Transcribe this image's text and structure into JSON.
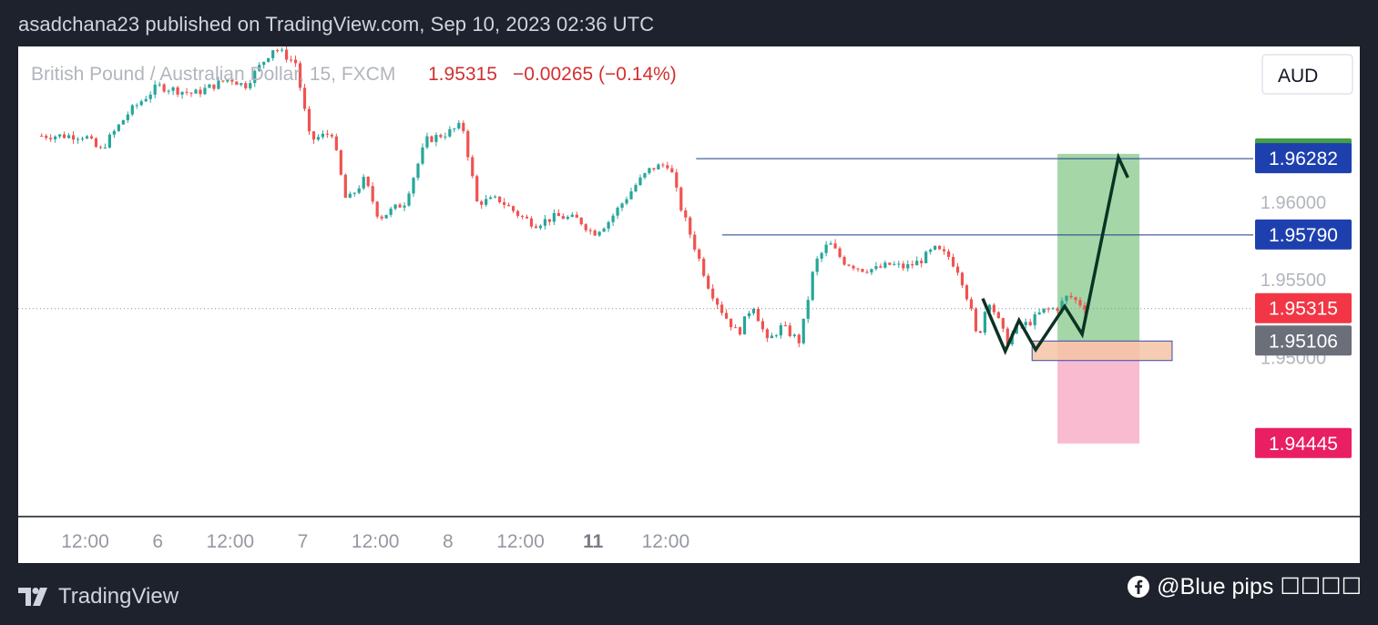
{
  "header": {
    "published_text": "asadchana23 published on TradingView.com, Sep 10, 2023 02:36 UTC"
  },
  "legend": {
    "symbol": "British Pound / Australian Dollar, 15, FXCM",
    "price": "1.95315",
    "change": "−0.00265 (−0.14%)"
  },
  "currency_button": "AUD",
  "footer": {
    "brand": "TradingView",
    "credit": "@Blue pips ☐☐☐☐"
  },
  "colors": {
    "background": "#1e222d",
    "up_candle": "#26a69a",
    "down_candle": "#ef5350",
    "target_zone": "#a5d6a7",
    "stop_zone": "#f8bbd0",
    "entry_zone": "#f5c4a4",
    "drawing": "#0b3323",
    "level_line": "#1e3a8a"
  },
  "chart_data": {
    "type": "candlestick",
    "x_ticks": [
      "12:00",
      "6",
      "12:00",
      "7",
      "12:00",
      "8",
      "12:00",
      "11",
      "12:00"
    ],
    "y_ticks": [
      "1.96000",
      "1.95500",
      "1.95000"
    ],
    "ylim": [
      1.9405,
      1.969
    ],
    "price_labels": [
      {
        "value": 1.96313,
        "label": "1.96313",
        "color": "#43a047"
      },
      {
        "value": 1.96282,
        "label": "1.96282",
        "color": "#1e40af"
      },
      {
        "value": 1.9579,
        "label": "1.95790",
        "color": "#1e40af"
      },
      {
        "value": 1.95315,
        "label": "1.95315",
        "color": "#f23645"
      },
      {
        "value": 1.95106,
        "label": "1.95106",
        "color": "#6b6f7a"
      },
      {
        "value": 1.94445,
        "label": "1.94445",
        "color": "#e91e63"
      }
    ],
    "horizontal_levels": [
      {
        "value": 1.96282,
        "from": 8.42
      },
      {
        "value": 1.9579,
        "from": 8.78
      }
    ],
    "last_price": 1.95315,
    "entry_zone": {
      "from": 13.05,
      "to": 14.98,
      "low": 1.9498,
      "high": 1.95106
    },
    "position": {
      "from": 13.4,
      "to": 14.53,
      "target": 1.96313,
      "entry": 1.95106,
      "stop": 1.94445
    },
    "projection_path": [
      {
        "t": 12.37,
        "p": 1.9538
      },
      {
        "t": 12.68,
        "p": 1.9504
      },
      {
        "t": 12.87,
        "p": 1.9524
      },
      {
        "t": 13.1,
        "p": 1.9505
      },
      {
        "t": 13.5,
        "p": 1.9533
      },
      {
        "t": 13.74,
        "p": 1.9515
      },
      {
        "t": 14.24,
        "p": 1.9629
      },
      {
        "t": 14.37,
        "p": 1.9616
      }
    ],
    "close_path": [
      {
        "t": 0.0,
        "p": 1.9643
      },
      {
        "t": 0.2,
        "p": 1.9633
      },
      {
        "t": 0.6,
        "p": 1.9658
      },
      {
        "t": 1.0,
        "p": 1.9675
      },
      {
        "t": 1.5,
        "p": 1.967
      },
      {
        "t": 2.0,
        "p": 1.968
      },
      {
        "t": 2.2,
        "p": 1.9675
      },
      {
        "t": 2.6,
        "p": 1.97
      },
      {
        "t": 2.9,
        "p": 1.969
      },
      {
        "t": 3.1,
        "p": 1.964
      },
      {
        "t": 3.4,
        "p": 1.9645
      },
      {
        "t": 3.6,
        "p": 1.96
      },
      {
        "t": 3.85,
        "p": 1.9615
      },
      {
        "t": 4.05,
        "p": 1.959
      },
      {
        "t": 4.4,
        "p": 1.96
      },
      {
        "t": 4.7,
        "p": 1.964
      },
      {
        "t": 5.0,
        "p": 1.9645
      },
      {
        "t": 5.2,
        "p": 1.965
      },
      {
        "t": 5.4,
        "p": 1.96
      },
      {
        "t": 5.7,
        "p": 1.9602
      },
      {
        "t": 6.0,
        "p": 1.9591
      },
      {
        "t": 6.2,
        "p": 1.9586
      },
      {
        "t": 6.5,
        "p": 1.9591
      },
      {
        "t": 6.8,
        "p": 1.9589
      },
      {
        "t": 7.0,
        "p": 1.958
      },
      {
        "t": 7.2,
        "p": 1.9587
      },
      {
        "t": 7.6,
        "p": 1.9612
      },
      {
        "t": 7.8,
        "p": 1.9622
      },
      {
        "t": 8.05,
        "p": 1.9625
      },
      {
        "t": 8.2,
        "p": 1.9598
      },
      {
        "t": 8.35,
        "p": 1.9578
      },
      {
        "t": 8.6,
        "p": 1.9545
      },
      {
        "t": 8.8,
        "p": 1.9528
      },
      {
        "t": 9.0,
        "p": 1.9515
      },
      {
        "t": 9.2,
        "p": 1.9535
      },
      {
        "t": 9.4,
        "p": 1.951
      },
      {
        "t": 9.6,
        "p": 1.952
      },
      {
        "t": 9.85,
        "p": 1.951
      },
      {
        "t": 10.05,
        "p": 1.956
      },
      {
        "t": 10.25,
        "p": 1.9574
      },
      {
        "t": 10.45,
        "p": 1.9562
      },
      {
        "t": 10.7,
        "p": 1.9557
      },
      {
        "t": 10.9,
        "p": 1.9557
      },
      {
        "t": 11.1,
        "p": 1.956
      },
      {
        "t": 11.3,
        "p": 1.9558
      },
      {
        "t": 11.5,
        "p": 1.9562
      },
      {
        "t": 11.7,
        "p": 1.957
      },
      {
        "t": 11.9,
        "p": 1.9565
      },
      {
        "t": 12.05,
        "p": 1.9555
      },
      {
        "t": 12.2,
        "p": 1.9532
      },
      {
        "t": 12.3,
        "p": 1.951
      },
      {
        "t": 12.37,
        "p": 1.9525
      },
      {
        "t": 12.45,
        "p": 1.9538
      },
      {
        "t": 12.6,
        "p": 1.9522
      },
      {
        "t": 12.7,
        "p": 1.951
      },
      {
        "t": 12.85,
        "p": 1.952
      },
      {
        "t": 13.0,
        "p": 1.9522
      },
      {
        "t": 13.2,
        "p": 1.953
      },
      {
        "t": 13.4,
        "p": 1.9532
      },
      {
        "t": 13.55,
        "p": 1.954
      },
      {
        "t": 13.7,
        "p": 1.9535
      },
      {
        "t": 13.83,
        "p": 1.95315
      }
    ]
  }
}
